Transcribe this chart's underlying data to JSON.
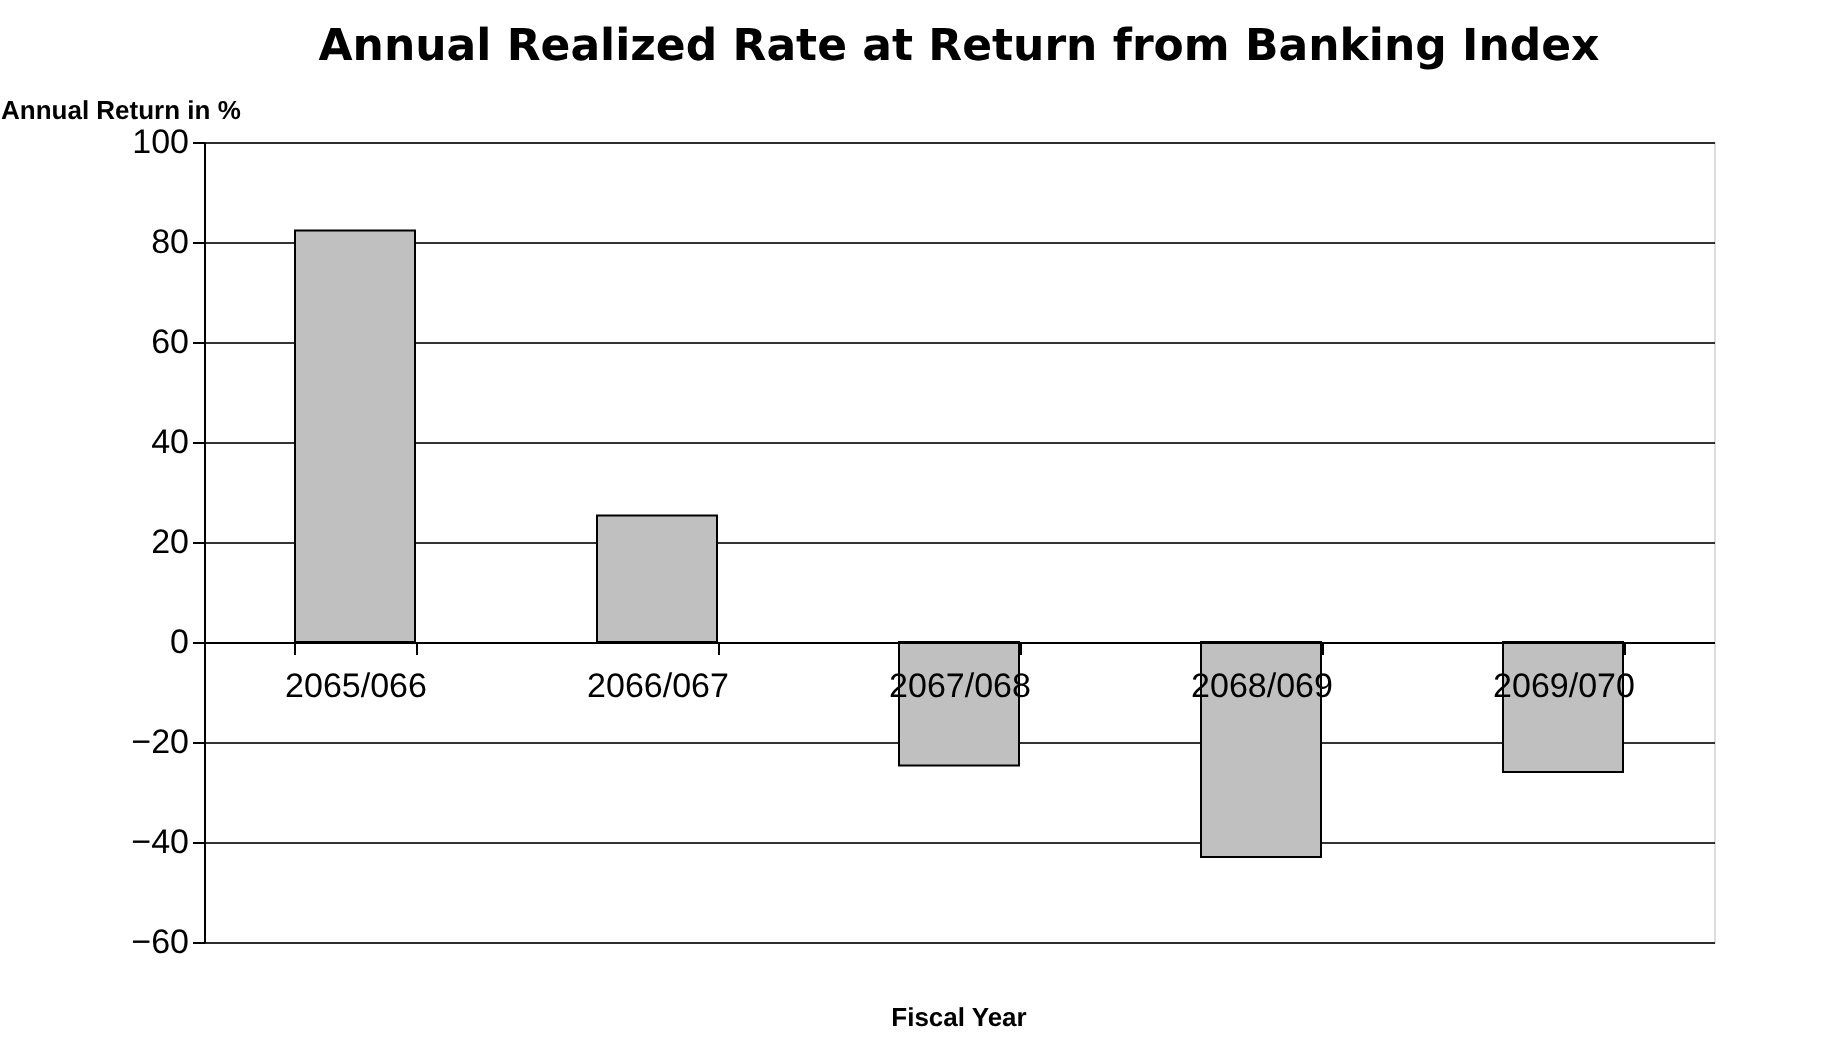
{
  "chart_data": {
    "type": "bar",
    "title": "Annual Realized Rate at Return from Banking Index",
    "xlabel": "Fiscal Year",
    "ylabel": "Annual Return in %",
    "categories": [
      "2065/066",
      "2066/067",
      "2067/068",
      "2068/069",
      "2069/070"
    ],
    "values": [
      82.3,
      25.3,
      -24.7,
      -43.0,
      -26.0
    ],
    "color": "#c0c0c0",
    "ylim": [
      -60,
      100
    ],
    "yticks": [
      -60,
      -40,
      -20,
      0,
      20,
      40,
      60,
      80,
      100
    ],
    "grid": "y"
  }
}
